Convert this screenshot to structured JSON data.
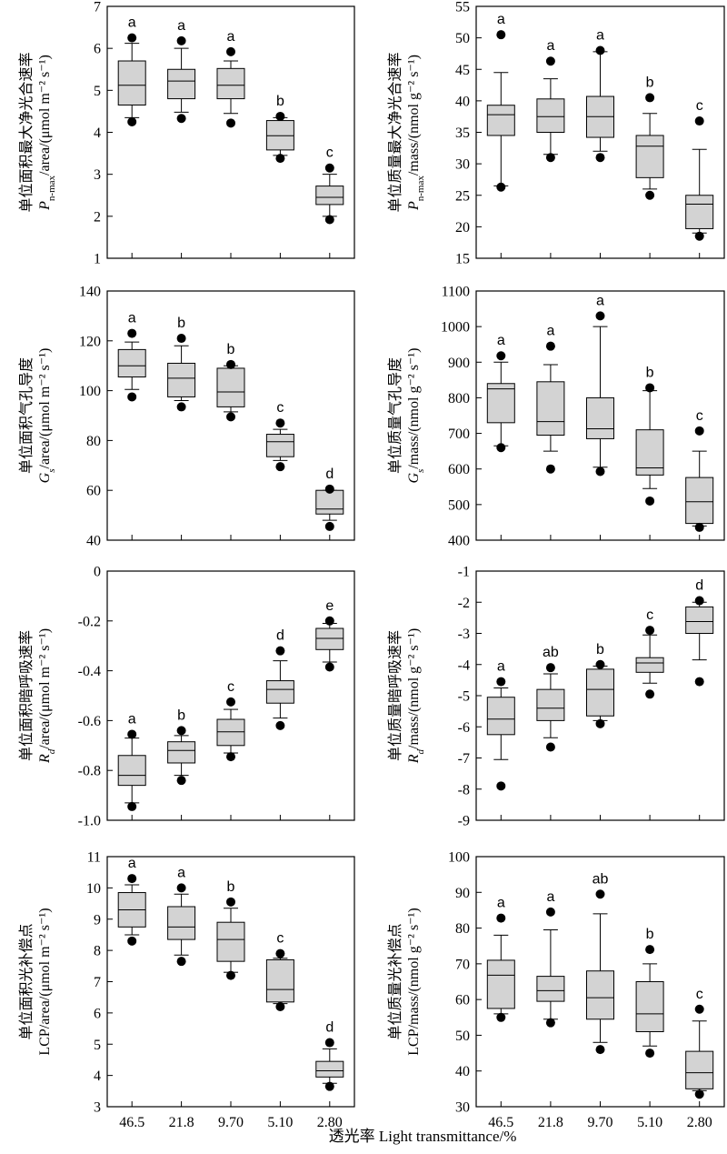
{
  "x_axis_title": "透光率 Light transmittance/%",
  "chart_data": [
    {
      "type": "box",
      "ylabel": [
        "单位面积最大净光合速率",
        "P_n-max/area/(μmol m⁻² s⁻¹)"
      ],
      "ylim": [
        1,
        7
      ],
      "ticks": [
        1,
        2,
        3,
        4,
        5,
        6,
        7
      ],
      "categories": [
        "46.5",
        "21.8",
        "9.70",
        "5.10",
        "2.80"
      ],
      "boxes": [
        {
          "wlo": 4.35,
          "q1": 4.65,
          "med": 5.12,
          "q3": 5.7,
          "whi": 6.12,
          "out": [
            4.25,
            6.25
          ],
          "sig": "a"
        },
        {
          "wlo": 4.48,
          "q1": 4.8,
          "med": 5.22,
          "q3": 5.5,
          "whi": 6.0,
          "out": [
            4.33,
            6.18
          ],
          "sig": "a"
        },
        {
          "wlo": 4.45,
          "q1": 4.8,
          "med": 5.12,
          "q3": 5.52,
          "whi": 5.7,
          "out": [
            4.22,
            5.92
          ],
          "sig": "a"
        },
        {
          "wlo": 3.45,
          "q1": 3.58,
          "med": 3.92,
          "q3": 4.28,
          "whi": 4.35,
          "out": [
            3.38,
            4.38
          ],
          "sig": "b"
        },
        {
          "wlo": 2.0,
          "q1": 2.28,
          "med": 2.45,
          "q3": 2.72,
          "whi": 3.0,
          "out": [
            1.92,
            3.15
          ],
          "sig": "c"
        }
      ]
    },
    {
      "type": "box",
      "ylabel": [
        "单位质量最大净光合速率",
        "P_n-max/mass/(nmol g⁻² s⁻¹)"
      ],
      "ylim": [
        15,
        55
      ],
      "ticks": [
        15,
        20,
        25,
        30,
        35,
        40,
        45,
        50,
        55
      ],
      "categories": [
        "46.5",
        "21.8",
        "9.70",
        "5.10",
        "2.80"
      ],
      "boxes": [
        {
          "wlo": 26.5,
          "q1": 34.5,
          "med": 37.8,
          "q3": 39.3,
          "whi": 44.5,
          "out": [
            26.3,
            50.5
          ],
          "sig": "a"
        },
        {
          "wlo": 31.5,
          "q1": 35.0,
          "med": 37.5,
          "q3": 40.3,
          "whi": 43.5,
          "out": [
            31.0,
            46.3
          ],
          "sig": "a"
        },
        {
          "wlo": 32.0,
          "q1": 34.2,
          "med": 37.5,
          "q3": 40.7,
          "whi": 47.8,
          "out": [
            31.0,
            48.0
          ],
          "sig": "a"
        },
        {
          "wlo": 26.0,
          "q1": 27.8,
          "med": 32.8,
          "q3": 34.5,
          "whi": 38.0,
          "out": [
            25.0,
            40.5
          ],
          "sig": "b"
        },
        {
          "wlo": 19.0,
          "q1": 19.7,
          "med": 23.6,
          "q3": 25.0,
          "whi": 32.3,
          "out": [
            18.5,
            36.8
          ],
          "sig": "c"
        }
      ]
    },
    {
      "type": "box",
      "ylabel": [
        "单位面积气孔导度",
        "G_s/area/(μmol m⁻² s⁻¹)"
      ],
      "ylim": [
        40,
        140
      ],
      "ticks": [
        40,
        60,
        80,
        100,
        120,
        140
      ],
      "categories": [
        "46.5",
        "21.8",
        "9.70",
        "5.10",
        "2.80"
      ],
      "boxes": [
        {
          "wlo": 100.5,
          "q1": 105.5,
          "med": 110.0,
          "q3": 116.5,
          "whi": 119.5,
          "out": [
            97.5,
            123.0
          ],
          "sig": "a"
        },
        {
          "wlo": 96.0,
          "q1": 97.5,
          "med": 105.0,
          "q3": 111.0,
          "whi": 118.0,
          "out": [
            93.5,
            121.0
          ],
          "sig": "b"
        },
        {
          "wlo": 91.5,
          "q1": 93.5,
          "med": 99.5,
          "q3": 109.0,
          "whi": 110.0,
          "out": [
            89.5,
            110.5
          ],
          "sig": "b"
        },
        {
          "wlo": 72.0,
          "q1": 73.5,
          "med": 79.5,
          "q3": 82.5,
          "whi": 84.5,
          "out": [
            69.5,
            87.0
          ],
          "sig": "c"
        },
        {
          "wlo": 48.0,
          "q1": 50.5,
          "med": 52.5,
          "q3": 60.0,
          "whi": 60.0,
          "out": [
            45.5,
            60.5
          ],
          "sig": "d"
        }
      ]
    },
    {
      "type": "box",
      "ylabel": [
        "单位质量气孔导度",
        "G_s/mass/(nmol g⁻² s⁻¹)"
      ],
      "ylim": [
        400,
        1100
      ],
      "ticks": [
        400,
        500,
        600,
        700,
        800,
        900,
        1000,
        1100
      ],
      "categories": [
        "46.5",
        "21.8",
        "9.70",
        "5.10",
        "2.80"
      ],
      "boxes": [
        {
          "wlo": 665,
          "q1": 730,
          "med": 825,
          "q3": 840,
          "whi": 900,
          "out": [
            660,
            918
          ],
          "sig": "a"
        },
        {
          "wlo": 650,
          "q1": 695,
          "med": 733,
          "q3": 845,
          "whi": 893,
          "out": [
            600,
            945
          ],
          "sig": "a"
        },
        {
          "wlo": 605,
          "q1": 685,
          "med": 713,
          "q3": 800,
          "whi": 1000,
          "out": [
            593,
            1030
          ],
          "sig": "a"
        },
        {
          "wlo": 545,
          "q1": 583,
          "med": 603,
          "q3": 710,
          "whi": 820,
          "out": [
            510,
            828
          ],
          "sig": "b"
        },
        {
          "wlo": 440,
          "q1": 447,
          "med": 508,
          "q3": 576,
          "whi": 650,
          "out": [
            436,
            707
          ],
          "sig": "c"
        }
      ]
    },
    {
      "type": "box",
      "ylabel": [
        "单位面积暗呼吸速率",
        "R_d/area/(μmol m⁻² s⁻¹)"
      ],
      "ylim": [
        -1.0,
        0
      ],
      "ticks": [
        -1.0,
        -0.8,
        -0.6,
        -0.4,
        -0.2,
        0
      ],
      "tick_labels": [
        "-1.0",
        "-0.8",
        "-0.6",
        "-0.4",
        "-0.2",
        "0"
      ],
      "categories": [
        "46.5",
        "21.8",
        "9.70",
        "5.10",
        "2.80"
      ],
      "boxes": [
        {
          "wlo": -0.93,
          "q1": -0.86,
          "med": -0.82,
          "q3": -0.74,
          "whi": -0.67,
          "out": [
            -0.945,
            -0.655
          ],
          "sig": "a"
        },
        {
          "wlo": -0.82,
          "q1": -0.77,
          "med": -0.72,
          "q3": -0.685,
          "whi": -0.66,
          "out": [
            -0.84,
            -0.64
          ],
          "sig": "b"
        },
        {
          "wlo": -0.73,
          "q1": -0.7,
          "med": -0.645,
          "q3": -0.595,
          "whi": -0.555,
          "out": [
            -0.745,
            -0.525
          ],
          "sig": "c"
        },
        {
          "wlo": -0.59,
          "q1": -0.53,
          "med": -0.475,
          "q3": -0.44,
          "whi": -0.36,
          "out": [
            -0.62,
            -0.32
          ],
          "sig": "d"
        },
        {
          "wlo": -0.365,
          "q1": -0.315,
          "med": -0.27,
          "q3": -0.23,
          "whi": -0.21,
          "out": [
            -0.385,
            -0.2
          ],
          "sig": "e"
        }
      ]
    },
    {
      "type": "box",
      "ylabel": [
        "单位质量暗呼吸速率",
        "R_d/mass/(nmol g⁻² s⁻¹)"
      ],
      "ylim": [
        -9,
        -1
      ],
      "ticks": [
        -9,
        -8,
        -7,
        -6,
        -5,
        -4,
        -3,
        -2,
        -1
      ],
      "categories": [
        "46.5",
        "21.8",
        "9.70",
        "5.10",
        "2.80"
      ],
      "boxes": [
        {
          "wlo": -7.05,
          "q1": -6.25,
          "med": -5.75,
          "q3": -5.05,
          "whi": -4.75,
          "out": [
            -7.9,
            -4.55
          ],
          "sig": "a"
        },
        {
          "wlo": -6.35,
          "q1": -5.8,
          "med": -5.4,
          "q3": -4.8,
          "whi": -4.3,
          "out": [
            -6.65,
            -4.1
          ],
          "sig": "ab"
        },
        {
          "wlo": -5.8,
          "q1": -5.65,
          "med": -4.8,
          "q3": -4.15,
          "whi": -4.05,
          "out": [
            -5.9,
            -4.0
          ],
          "sig": "b"
        },
        {
          "wlo": -4.6,
          "q1": -4.25,
          "med": -3.95,
          "q3": -3.78,
          "whi": -3.05,
          "out": [
            -4.95,
            -2.9
          ],
          "sig": "c"
        },
        {
          "wlo": -3.85,
          "q1": -3.0,
          "med": -2.62,
          "q3": -2.15,
          "whi": -2.0,
          "out": [
            -4.55,
            -1.95
          ],
          "sig": "d"
        }
      ]
    },
    {
      "type": "box",
      "ylabel": [
        "单位面积光补偿点",
        "LCP/area/(μmol m⁻² s⁻¹)"
      ],
      "ylim": [
        3,
        11
      ],
      "ticks": [
        3,
        4,
        5,
        6,
        7,
        8,
        9,
        10,
        11
      ],
      "categories": [
        "46.5",
        "21.8",
        "9.70",
        "5.10",
        "2.80"
      ],
      "xticklabels": [
        "46.5",
        "21.8",
        "9.70",
        "5.10",
        "2.80"
      ],
      "boxes": [
        {
          "wlo": 8.5,
          "q1": 8.75,
          "med": 9.3,
          "q3": 9.85,
          "whi": 10.1,
          "out": [
            8.3,
            10.3
          ],
          "sig": "a"
        },
        {
          "wlo": 7.85,
          "q1": 8.35,
          "med": 8.75,
          "q3": 9.4,
          "whi": 9.8,
          "out": [
            7.65,
            10.0
          ],
          "sig": "a"
        },
        {
          "wlo": 7.3,
          "q1": 7.65,
          "med": 8.35,
          "q3": 8.9,
          "whi": 9.35,
          "out": [
            7.2,
            9.55
          ],
          "sig": "b"
        },
        {
          "wlo": 6.3,
          "q1": 6.35,
          "med": 6.75,
          "q3": 7.7,
          "whi": 7.75,
          "out": [
            6.2,
            7.9
          ],
          "sig": "c"
        },
        {
          "wlo": 3.75,
          "q1": 3.95,
          "med": 4.15,
          "q3": 4.45,
          "whi": 4.85,
          "out": [
            3.65,
            5.05
          ],
          "sig": "d"
        }
      ]
    },
    {
      "type": "box",
      "ylabel": [
        "单位质量光补偿点",
        "LCP/mass/(nmol g⁻² s⁻¹)"
      ],
      "ylim": [
        30,
        100
      ],
      "ticks": [
        30,
        40,
        50,
        60,
        70,
        80,
        90,
        100
      ],
      "categories": [
        "46.5",
        "21.8",
        "9.70",
        "5.10",
        "2.80"
      ],
      "xticklabels": [
        "46.5",
        "21.8",
        "9.70",
        "5.10",
        "2.80"
      ],
      "boxes": [
        {
          "wlo": 56.0,
          "q1": 57.5,
          "med": 66.8,
          "q3": 71.0,
          "whi": 78.0,
          "out": [
            55.0,
            82.8
          ],
          "sig": "a"
        },
        {
          "wlo": 54.5,
          "q1": 59.5,
          "med": 62.5,
          "q3": 66.5,
          "whi": 79.5,
          "out": [
            53.5,
            84.5
          ],
          "sig": "a"
        },
        {
          "wlo": 48.0,
          "q1": 54.5,
          "med": 60.5,
          "q3": 68.0,
          "whi": 84.0,
          "out": [
            46.0,
            89.5
          ],
          "sig": "ab"
        },
        {
          "wlo": 47.0,
          "q1": 51.0,
          "med": 56.0,
          "q3": 65.0,
          "whi": 70.0,
          "out": [
            45.0,
            74.0
          ],
          "sig": "b"
        },
        {
          "wlo": 34.5,
          "q1": 35.0,
          "med": 39.5,
          "q3": 45.5,
          "whi": 54.0,
          "out": [
            33.5,
            57.3
          ],
          "sig": "c"
        }
      ]
    }
  ]
}
